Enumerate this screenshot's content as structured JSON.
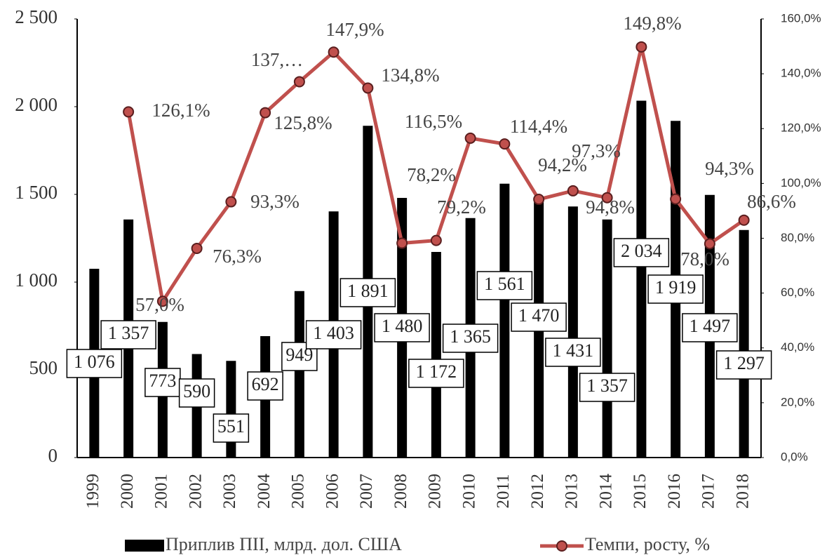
{
  "chart_data": {
    "type": "bar",
    "categories": [
      "1999",
      "2000",
      "2001",
      "2002",
      "2003",
      "2004",
      "2005",
      "2006",
      "2007",
      "2008",
      "2009",
      "2010",
      "2011",
      "2012",
      "2013",
      "2014",
      "2015",
      "2016",
      "2017",
      "2018"
    ],
    "series": [
      {
        "name": "Приплив ПІІ, млрд. дол. США",
        "type": "bar",
        "color": "#000000",
        "values": [
          1076,
          1357,
          773,
          590,
          551,
          692,
          949,
          1403,
          1891,
          1480,
          1172,
          1365,
          1561,
          1470,
          1431,
          1357,
          2034,
          1919,
          1497,
          1297
        ],
        "value_labels": [
          "1 076",
          "1 357",
          "773",
          "590",
          "551",
          "692",
          "949",
          "1 403",
          "1 891",
          "1 480",
          "1 172",
          "1 365",
          "1 561",
          "1 470",
          "1 431",
          "1 357",
          "2 034",
          "1 919",
          "1 497",
          "1 297"
        ]
      },
      {
        "name": "Темпи, росту, %",
        "type": "line",
        "axis": "y2",
        "color": "#c0504d",
        "values": [
          null,
          126.1,
          57.0,
          76.3,
          93.3,
          125.8,
          137.1,
          147.9,
          134.8,
          78.2,
          79.2,
          116.5,
          114.4,
          94.2,
          97.3,
          94.8,
          149.8,
          94.3,
          78.0,
          86.6
        ],
        "value_labels": [
          null,
          "126,1%",
          "57,0%",
          "76,3%",
          "93,3%",
          "125,8%",
          "137,…",
          "147,9%",
          "134,8%",
          "78,2%",
          "79,2%",
          "116,5%",
          "114,4%",
          "94,2%",
          "97,3%",
          "94,8%",
          "149,8%",
          "94,3%",
          "78,0%",
          "86,6%"
        ]
      }
    ],
    "ylim": [
      0,
      2500
    ],
    "yticks": [
      0,
      500,
      {
        "value": 1000,
        "label": "1 000"
      },
      {
        "value": 1500,
        "label": "1 500"
      },
      {
        "value": 2000,
        "label": "2 000"
      },
      {
        "value": 2500,
        "label": "2 500"
      }
    ],
    "y2lim": [
      0,
      160
    ],
    "y2ticks": [
      {
        "value": 0,
        "label": "0,0%"
      },
      {
        "value": 20,
        "label": "20,0%"
      },
      {
        "value": 40,
        "label": "40,0%"
      },
      {
        "value": 60,
        "label": "60,0%"
      },
      {
        "value": 80,
        "label": "80,0%"
      },
      {
        "value": 100,
        "label": "100,0%"
      },
      {
        "value": 120,
        "label": "120,0%"
      },
      {
        "value": 140,
        "label": "140,0%"
      },
      {
        "value": 160,
        "label": "160,0%"
      }
    ]
  }
}
